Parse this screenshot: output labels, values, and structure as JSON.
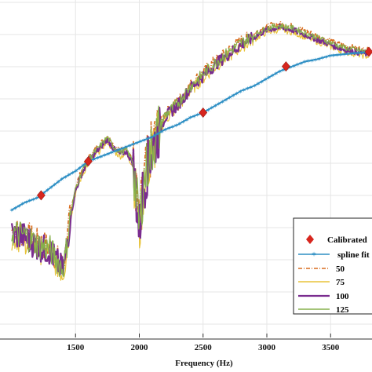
{
  "chart_data": {
    "type": "line",
    "xlabel": "Frequency (Hz)",
    "xlim": [
      1000,
      3800
    ],
    "ylim": [
      0,
      1
    ],
    "x_ticks": [
      "1500",
      "2000",
      "2500",
      "3000",
      "3500"
    ],
    "x_tick_values": [
      1500,
      2000,
      2500,
      3000,
      3500
    ],
    "grid": true,
    "legend_position": "bottom-right",
    "legend": [
      "Calibrated",
      "spline fit",
      "50",
      "75",
      "100",
      "125"
    ],
    "calibrated_points": {
      "name": "Calibrated",
      "color": "#d7261e",
      "marker": "diamond",
      "x": [
        1230,
        1600,
        2500,
        3150,
        3800
      ],
      "y": [
        0.31,
        0.45,
        0.65,
        0.84,
        0.9
      ]
    },
    "spline_fit": {
      "name": "spline fit",
      "color": "#2e8fc4",
      "marker": "star",
      "x": [
        1000,
        1100,
        1200,
        1300,
        1400,
        1500,
        1600,
        1700,
        1800,
        1900,
        2000,
        2100,
        2200,
        2300,
        2400,
        2500,
        2600,
        2700,
        2800,
        2900,
        3000,
        3100,
        3200,
        3300,
        3400,
        3500,
        3600,
        3700,
        3800
      ],
      "y": [
        0.25,
        0.28,
        0.3,
        0.34,
        0.38,
        0.41,
        0.45,
        0.47,
        0.49,
        0.51,
        0.53,
        0.55,
        0.58,
        0.6,
        0.63,
        0.65,
        0.68,
        0.71,
        0.74,
        0.76,
        0.79,
        0.82,
        0.84,
        0.86,
        0.87,
        0.885,
        0.89,
        0.895,
        0.9
      ]
    },
    "measured_base": {
      "x": [
        1000,
        1100,
        1200,
        1300,
        1350,
        1400,
        1420,
        1460,
        1500,
        1550,
        1600,
        1650,
        1700,
        1750,
        1800,
        1850,
        1900,
        1950,
        1980,
        2000,
        2030,
        2060,
        2100,
        2150,
        2200,
        2300,
        2400,
        2500,
        2600,
        2700,
        2800,
        2900,
        3000,
        3100,
        3200,
        3300,
        3400,
        3500,
        3600,
        3700,
        3800
      ],
      "y": [
        0.15,
        0.14,
        0.1,
        0.08,
        0.04,
        0.0,
        0.05,
        0.22,
        0.33,
        0.4,
        0.45,
        0.48,
        0.51,
        0.54,
        0.5,
        0.48,
        0.49,
        0.44,
        0.28,
        0.16,
        0.34,
        0.42,
        0.5,
        0.57,
        0.63,
        0.68,
        0.75,
        0.8,
        0.85,
        0.89,
        0.93,
        0.96,
        0.99,
        1.0,
        0.99,
        0.97,
        0.95,
        0.93,
        0.91,
        0.9,
        0.89
      ]
    },
    "series": [
      {
        "name": "50",
        "color": "#d96c1e",
        "dash": "5,2,1,2",
        "width": 1.6,
        "offset": 0.015
      },
      {
        "name": "75",
        "color": "#e8c33a",
        "dash": "",
        "width": 1.2,
        "offset": -0.01
      },
      {
        "name": "100",
        "color": "#7a2c8f",
        "dash": "",
        "width": 2.2,
        "offset": 0.0
      },
      {
        "name": "125",
        "color": "#86b04b",
        "dash": "",
        "width": 1.2,
        "offset": 0.008
      }
    ]
  }
}
